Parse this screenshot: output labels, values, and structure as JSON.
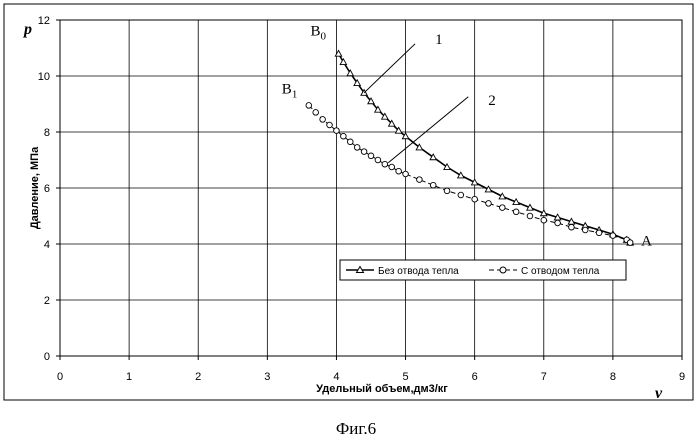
{
  "chart_data": {
    "type": "line",
    "xlabel": "Удельный объем,дм3/кг",
    "ylabel": "Давление, МПа",
    "x_var": "v",
    "y_var": "p",
    "xlim": [
      0,
      9
    ],
    "ylim": [
      0,
      12
    ],
    "x_ticks": [
      "0",
      "1",
      "2",
      "3",
      "4",
      "5",
      "6",
      "7",
      "8",
      "9"
    ],
    "y_ticks": [
      "0",
      "2",
      "4",
      "6",
      "8",
      "10",
      "12"
    ],
    "grid": true,
    "legend_position": "inside-lower-right",
    "series": [
      {
        "name": "Без отвода тепла",
        "marker": "triangle",
        "x": [
          4.03,
          4.1,
          4.2,
          4.3,
          4.4,
          4.5,
          4.6,
          4.7,
          4.8,
          4.9,
          5.0,
          5.2,
          5.4,
          5.6,
          5.8,
          6.0,
          6.2,
          6.4,
          6.6,
          6.8,
          7.0,
          7.2,
          7.4,
          7.6,
          7.8,
          8.0,
          8.2,
          8.25
        ],
        "values": [
          10.8,
          10.5,
          10.1,
          9.75,
          9.4,
          9.1,
          8.8,
          8.55,
          8.3,
          8.05,
          7.85,
          7.45,
          7.1,
          6.75,
          6.45,
          6.2,
          5.95,
          5.7,
          5.5,
          5.3,
          5.1,
          4.95,
          4.8,
          4.65,
          4.5,
          4.35,
          4.15,
          4.05
        ]
      },
      {
        "name": "С отводом тепла",
        "marker": "circle",
        "x": [
          3.6,
          3.7,
          3.8,
          3.9,
          4.0,
          4.1,
          4.2,
          4.3,
          4.4,
          4.5,
          4.6,
          4.7,
          4.8,
          4.9,
          5.0,
          5.2,
          5.4,
          5.6,
          5.8,
          6.0,
          6.2,
          6.4,
          6.6,
          6.8,
          7.0,
          7.2,
          7.4,
          7.6,
          7.8,
          8.0,
          8.2,
          8.25
        ],
        "values": [
          8.95,
          8.7,
          8.45,
          8.25,
          8.05,
          7.85,
          7.65,
          7.45,
          7.3,
          7.15,
          7.0,
          6.85,
          6.75,
          6.6,
          6.5,
          6.3,
          6.1,
          5.9,
          5.75,
          5.6,
          5.45,
          5.3,
          5.15,
          5.0,
          4.85,
          4.75,
          4.6,
          4.5,
          4.4,
          4.3,
          4.15,
          4.05
        ]
      }
    ],
    "annotations": {
      "points": [
        {
          "label": "B",
          "sub": "0",
          "x": 4.03,
          "y": 10.8
        },
        {
          "label": "B",
          "sub": "1",
          "x": 3.6,
          "y": 8.95
        },
        {
          "label": "A",
          "x": 8.25,
          "y": 4.05
        }
      ],
      "leaders": [
        {
          "label": "1",
          "x": 4.4,
          "y": 9.4
        },
        {
          "label": "2",
          "x": 4.75,
          "y": 6.9
        }
      ]
    }
  },
  "legend": {
    "series1_label": "Без отвода тепла",
    "series2_label": "С отводом тепла"
  },
  "caption": "Фиг.6"
}
